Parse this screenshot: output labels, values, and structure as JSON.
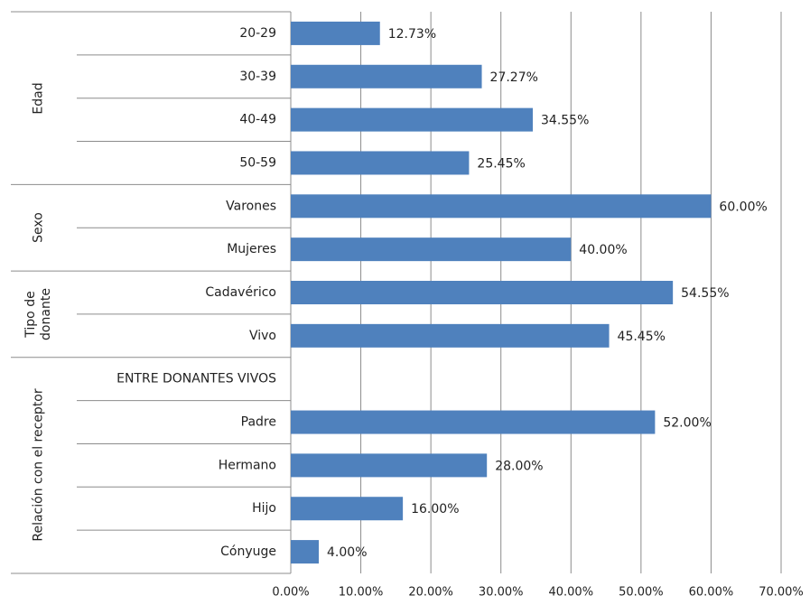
{
  "chart_data": {
    "type": "bar",
    "orientation": "horizontal",
    "color": "#4f81bd",
    "grid": true,
    "groups": [
      {
        "name": "Edad",
        "categories": [
          "20-29",
          "30-39",
          "40-49",
          "50-59"
        ],
        "values": [
          12.73,
          27.27,
          34.55,
          25.45
        ],
        "value_labels": [
          "12.73%",
          "27.27%",
          "34.55%",
          "25.45%"
        ]
      },
      {
        "name": "Sexo",
        "categories": [
          "Varones",
          "Mujeres"
        ],
        "values": [
          60,
          40
        ],
        "value_labels": [
          "60.00%",
          "40.00%"
        ]
      },
      {
        "name": "Tipo de donante",
        "categories": [
          "Cadavérico",
          "Vivo"
        ],
        "values": [
          54.55,
          45.45
        ],
        "value_labels": [
          "54.55%",
          "45.45%"
        ]
      },
      {
        "name": "Relación con el receptor",
        "categories": [
          "ENTRE DONANTES VIVOS",
          "Padre",
          "Hermano",
          "Hijo",
          "Cónyuge"
        ],
        "values": [
          null,
          52,
          28,
          16,
          4
        ],
        "value_labels": [
          null,
          "52.00%",
          "28.00%",
          "16.00%",
          "4.00%"
        ]
      }
    ],
    "xlim": [
      0,
      70
    ],
    "xticks": [
      {
        "value": 0,
        "label": "0.00%"
      },
      {
        "value": 10,
        "label": "10.00%"
      },
      {
        "value": 20,
        "label": "20.00%"
      },
      {
        "value": 30,
        "label": "30.00%"
      },
      {
        "value": 40,
        "label": "40.00%"
      },
      {
        "value": 50,
        "label": "50.00%"
      },
      {
        "value": 60,
        "label": "60.00%"
      },
      {
        "value": 70,
        "label": "70.00%"
      }
    ]
  }
}
